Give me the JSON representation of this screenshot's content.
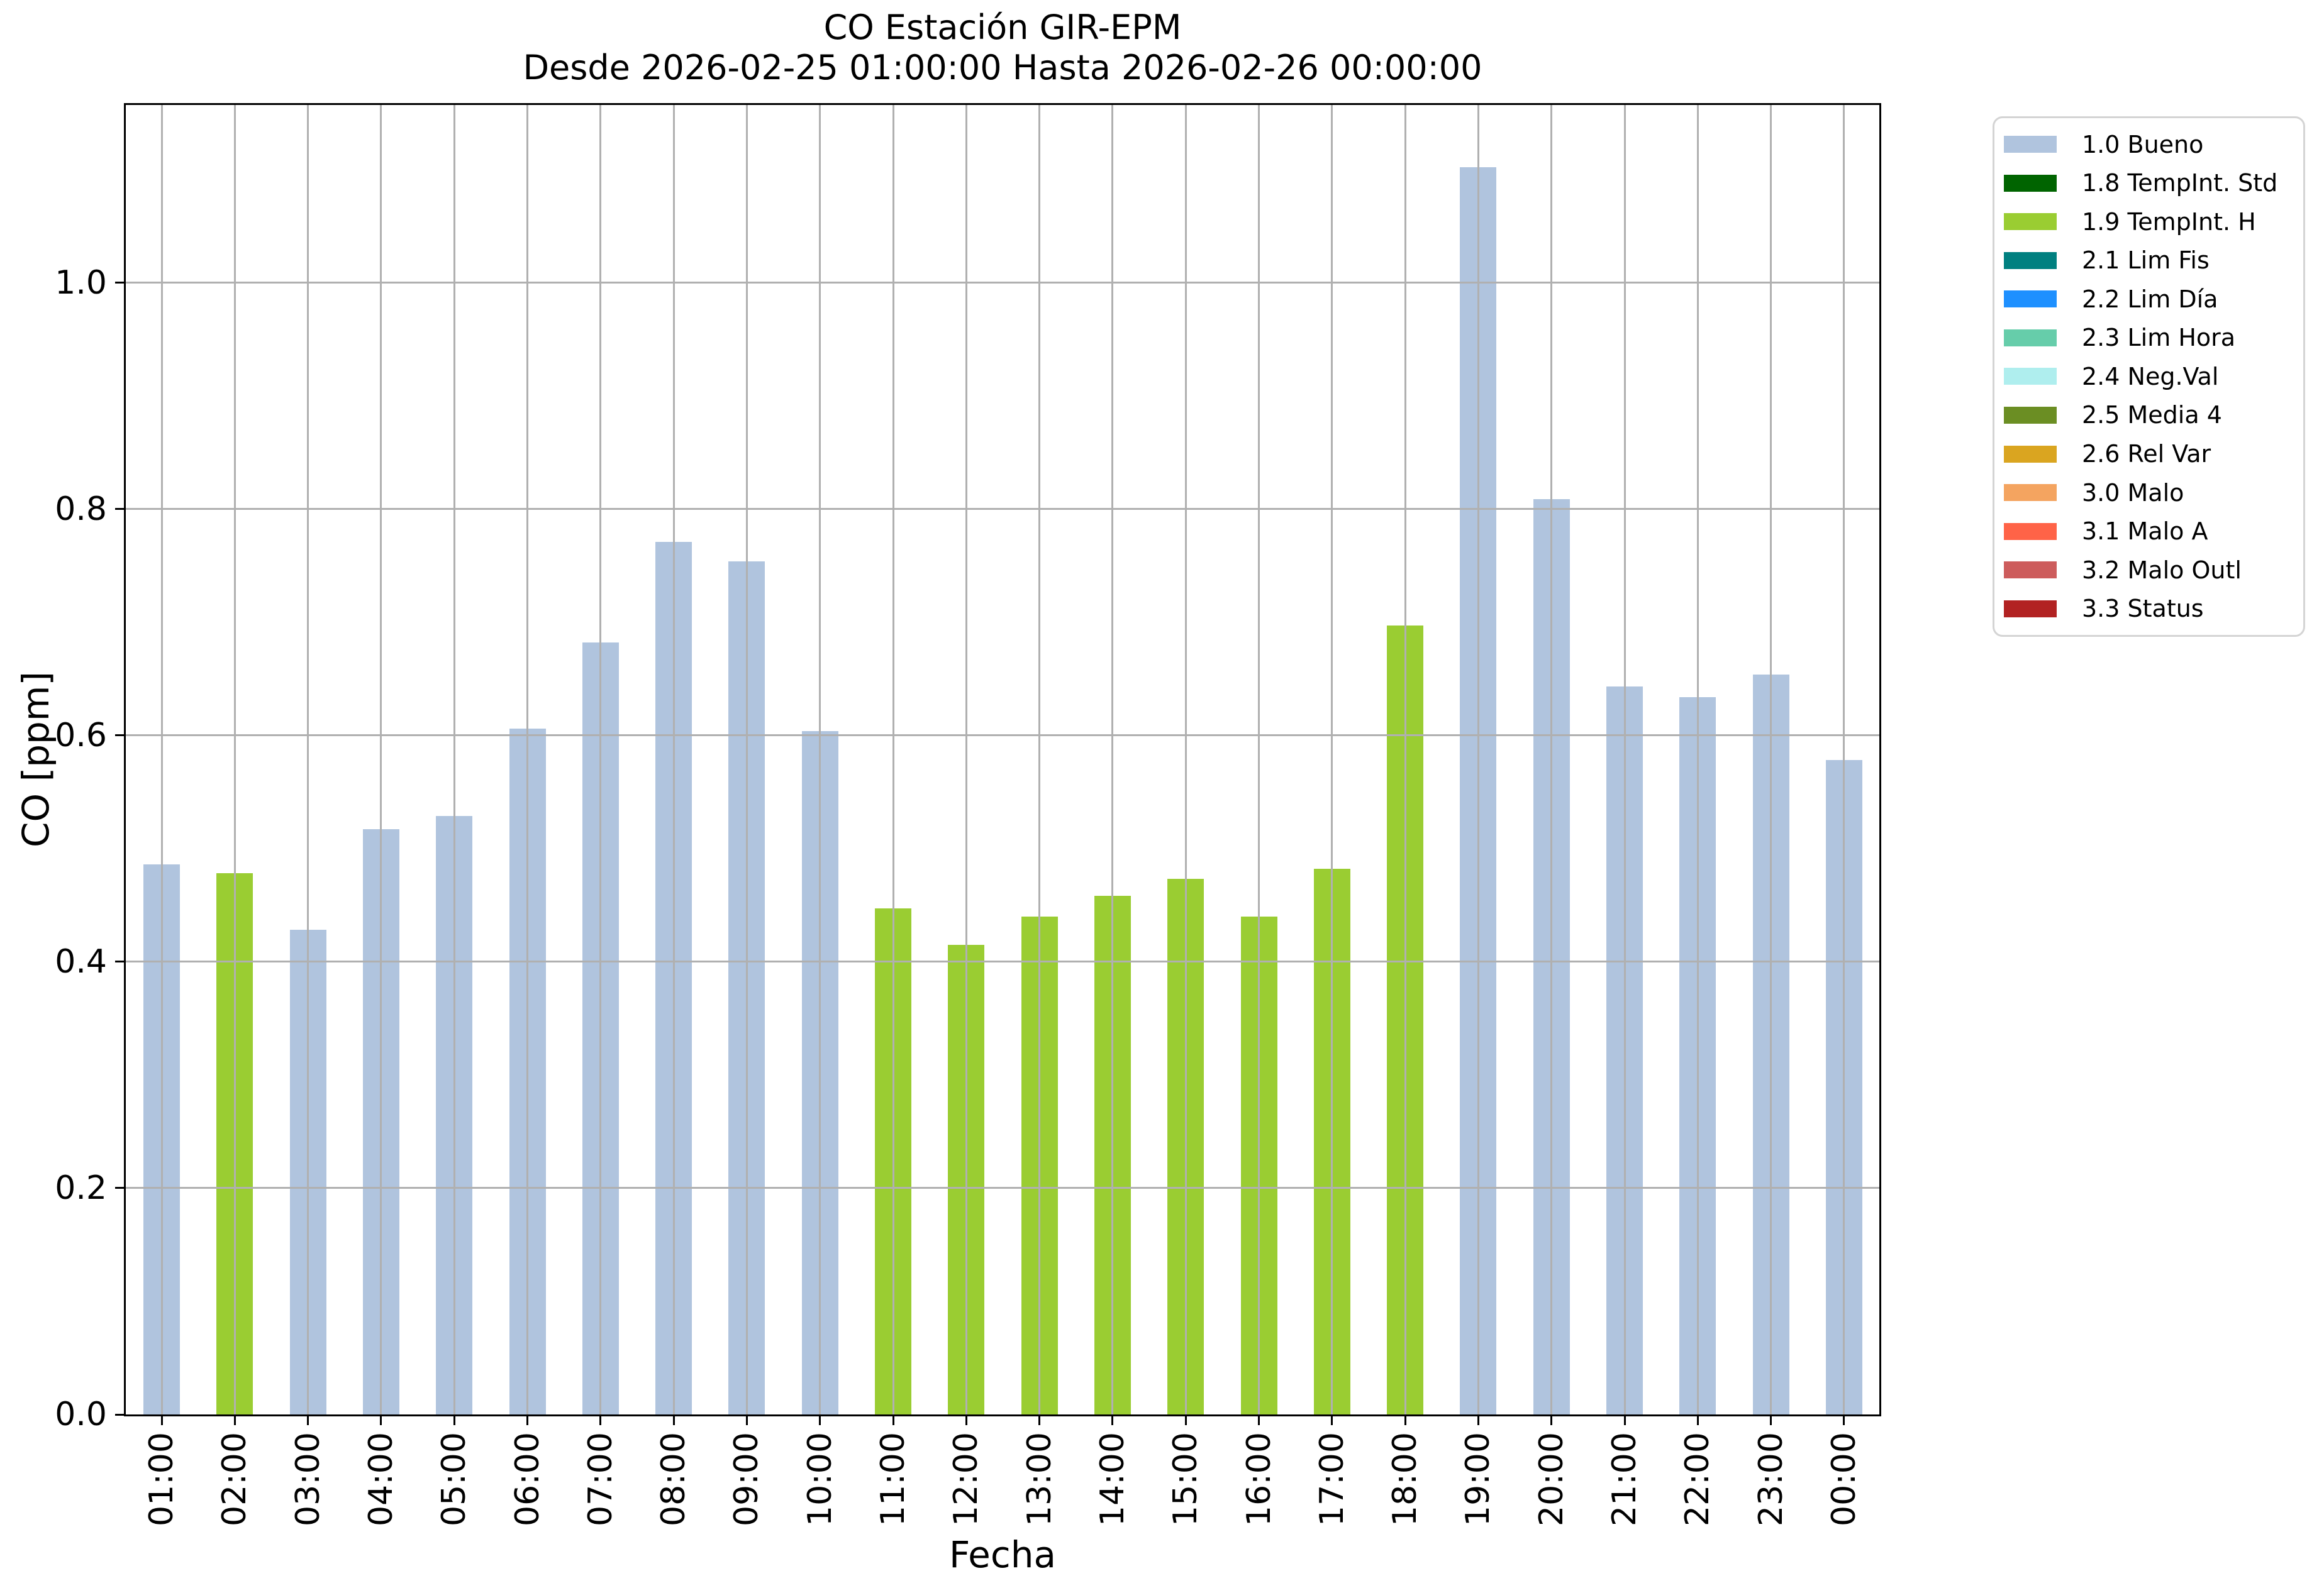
{
  "chart_data": {
    "type": "bar",
    "title": "CO Estación GIR-EPM",
    "subtitle": "Desde 2026-02-25 01:00:00 Hasta 2026-02-26 00:00:00",
    "xlabel": "Fecha",
    "ylabel": "CO [ppm]",
    "ylim": [
      0,
      1.157
    ],
    "yticks": [
      0.0,
      0.2,
      0.4,
      0.6,
      0.8,
      1.0
    ],
    "grid": true,
    "legend_position": "outside-upper-right",
    "categories": [
      "01:00",
      "02:00",
      "03:00",
      "04:00",
      "05:00",
      "06:00",
      "07:00",
      "08:00",
      "09:00",
      "10:00",
      "11:00",
      "12:00",
      "13:00",
      "14:00",
      "15:00",
      "16:00",
      "17:00",
      "18:00",
      "19:00",
      "20:00",
      "21:00",
      "22:00",
      "23:00",
      "00:00"
    ],
    "bars": [
      {
        "time": "01:00",
        "value": 0.486,
        "status": "1.0 Bueno"
      },
      {
        "time": "02:00",
        "value": 0.478,
        "status": "1.9 TempInt. H"
      },
      {
        "time": "03:00",
        "value": 0.428,
        "status": "1.0 Bueno"
      },
      {
        "time": "04:00",
        "value": 0.517,
        "status": "1.0 Bueno"
      },
      {
        "time": "05:00",
        "value": 0.529,
        "status": "1.0 Bueno"
      },
      {
        "time": "06:00",
        "value": 0.606,
        "status": "1.0 Bueno"
      },
      {
        "time": "07:00",
        "value": 0.682,
        "status": "1.0 Bueno"
      },
      {
        "time": "08:00",
        "value": 0.771,
        "status": "1.0 Bueno"
      },
      {
        "time": "09:00",
        "value": 0.754,
        "status": "1.0 Bueno"
      },
      {
        "time": "10:00",
        "value": 0.604,
        "status": "1.0 Bueno"
      },
      {
        "time": "11:00",
        "value": 0.447,
        "status": "1.9 TempInt. H"
      },
      {
        "time": "12:00",
        "value": 0.415,
        "status": "1.9 TempInt. H"
      },
      {
        "time": "13:00",
        "value": 0.44,
        "status": "1.9 TempInt. H"
      },
      {
        "time": "14:00",
        "value": 0.458,
        "status": "1.9 TempInt. H"
      },
      {
        "time": "15:00",
        "value": 0.473,
        "status": "1.9 TempInt. H"
      },
      {
        "time": "16:00",
        "value": 0.44,
        "status": "1.9 TempInt. H"
      },
      {
        "time": "17:00",
        "value": 0.482,
        "status": "1.9 TempInt. H"
      },
      {
        "time": "18:00",
        "value": 0.697,
        "status": "1.9 TempInt. H"
      },
      {
        "time": "19:00",
        "value": 1.102,
        "status": "1.0 Bueno"
      },
      {
        "time": "20:00",
        "value": 0.809,
        "status": "1.0 Bueno"
      },
      {
        "time": "21:00",
        "value": 0.643,
        "status": "1.0 Bueno"
      },
      {
        "time": "22:00",
        "value": 0.634,
        "status": "1.0 Bueno"
      },
      {
        "time": "23:00",
        "value": 0.654,
        "status": "1.0 Bueno"
      },
      {
        "time": "00:00",
        "value": 0.578,
        "status": "1.0 Bueno"
      }
    ],
    "legend": [
      {
        "label": "1.0 Bueno",
        "color": "#b0c4de"
      },
      {
        "label": "1.8 TempInt. Std",
        "color": "#006400"
      },
      {
        "label": "1.9 TempInt. H",
        "color": "#9acd32"
      },
      {
        "label": "2.1 Lim Fis",
        "color": "#008080"
      },
      {
        "label": "2.2 Lim Día",
        "color": "#1e90ff"
      },
      {
        "label": "2.3 Lim Hora",
        "color": "#66cdaa"
      },
      {
        "label": "2.4 Neg.Val",
        "color": "#afeeee"
      },
      {
        "label": "2.5 Media 4",
        "color": "#6b8e23"
      },
      {
        "label": "2.6 Rel Var",
        "color": "#daa520"
      },
      {
        "label": "3.0 Malo",
        "color": "#f4a460"
      },
      {
        "label": "3.1 Malo A",
        "color": "#ff6347"
      },
      {
        "label": "3.2 Malo Outl",
        "color": "#cd5c5c"
      },
      {
        "label": "3.3 Status",
        "color": "#b22222"
      }
    ],
    "style": {
      "grid_color": "#b0b0b0",
      "spine_color": "#000000",
      "background": "#ffffff"
    }
  }
}
